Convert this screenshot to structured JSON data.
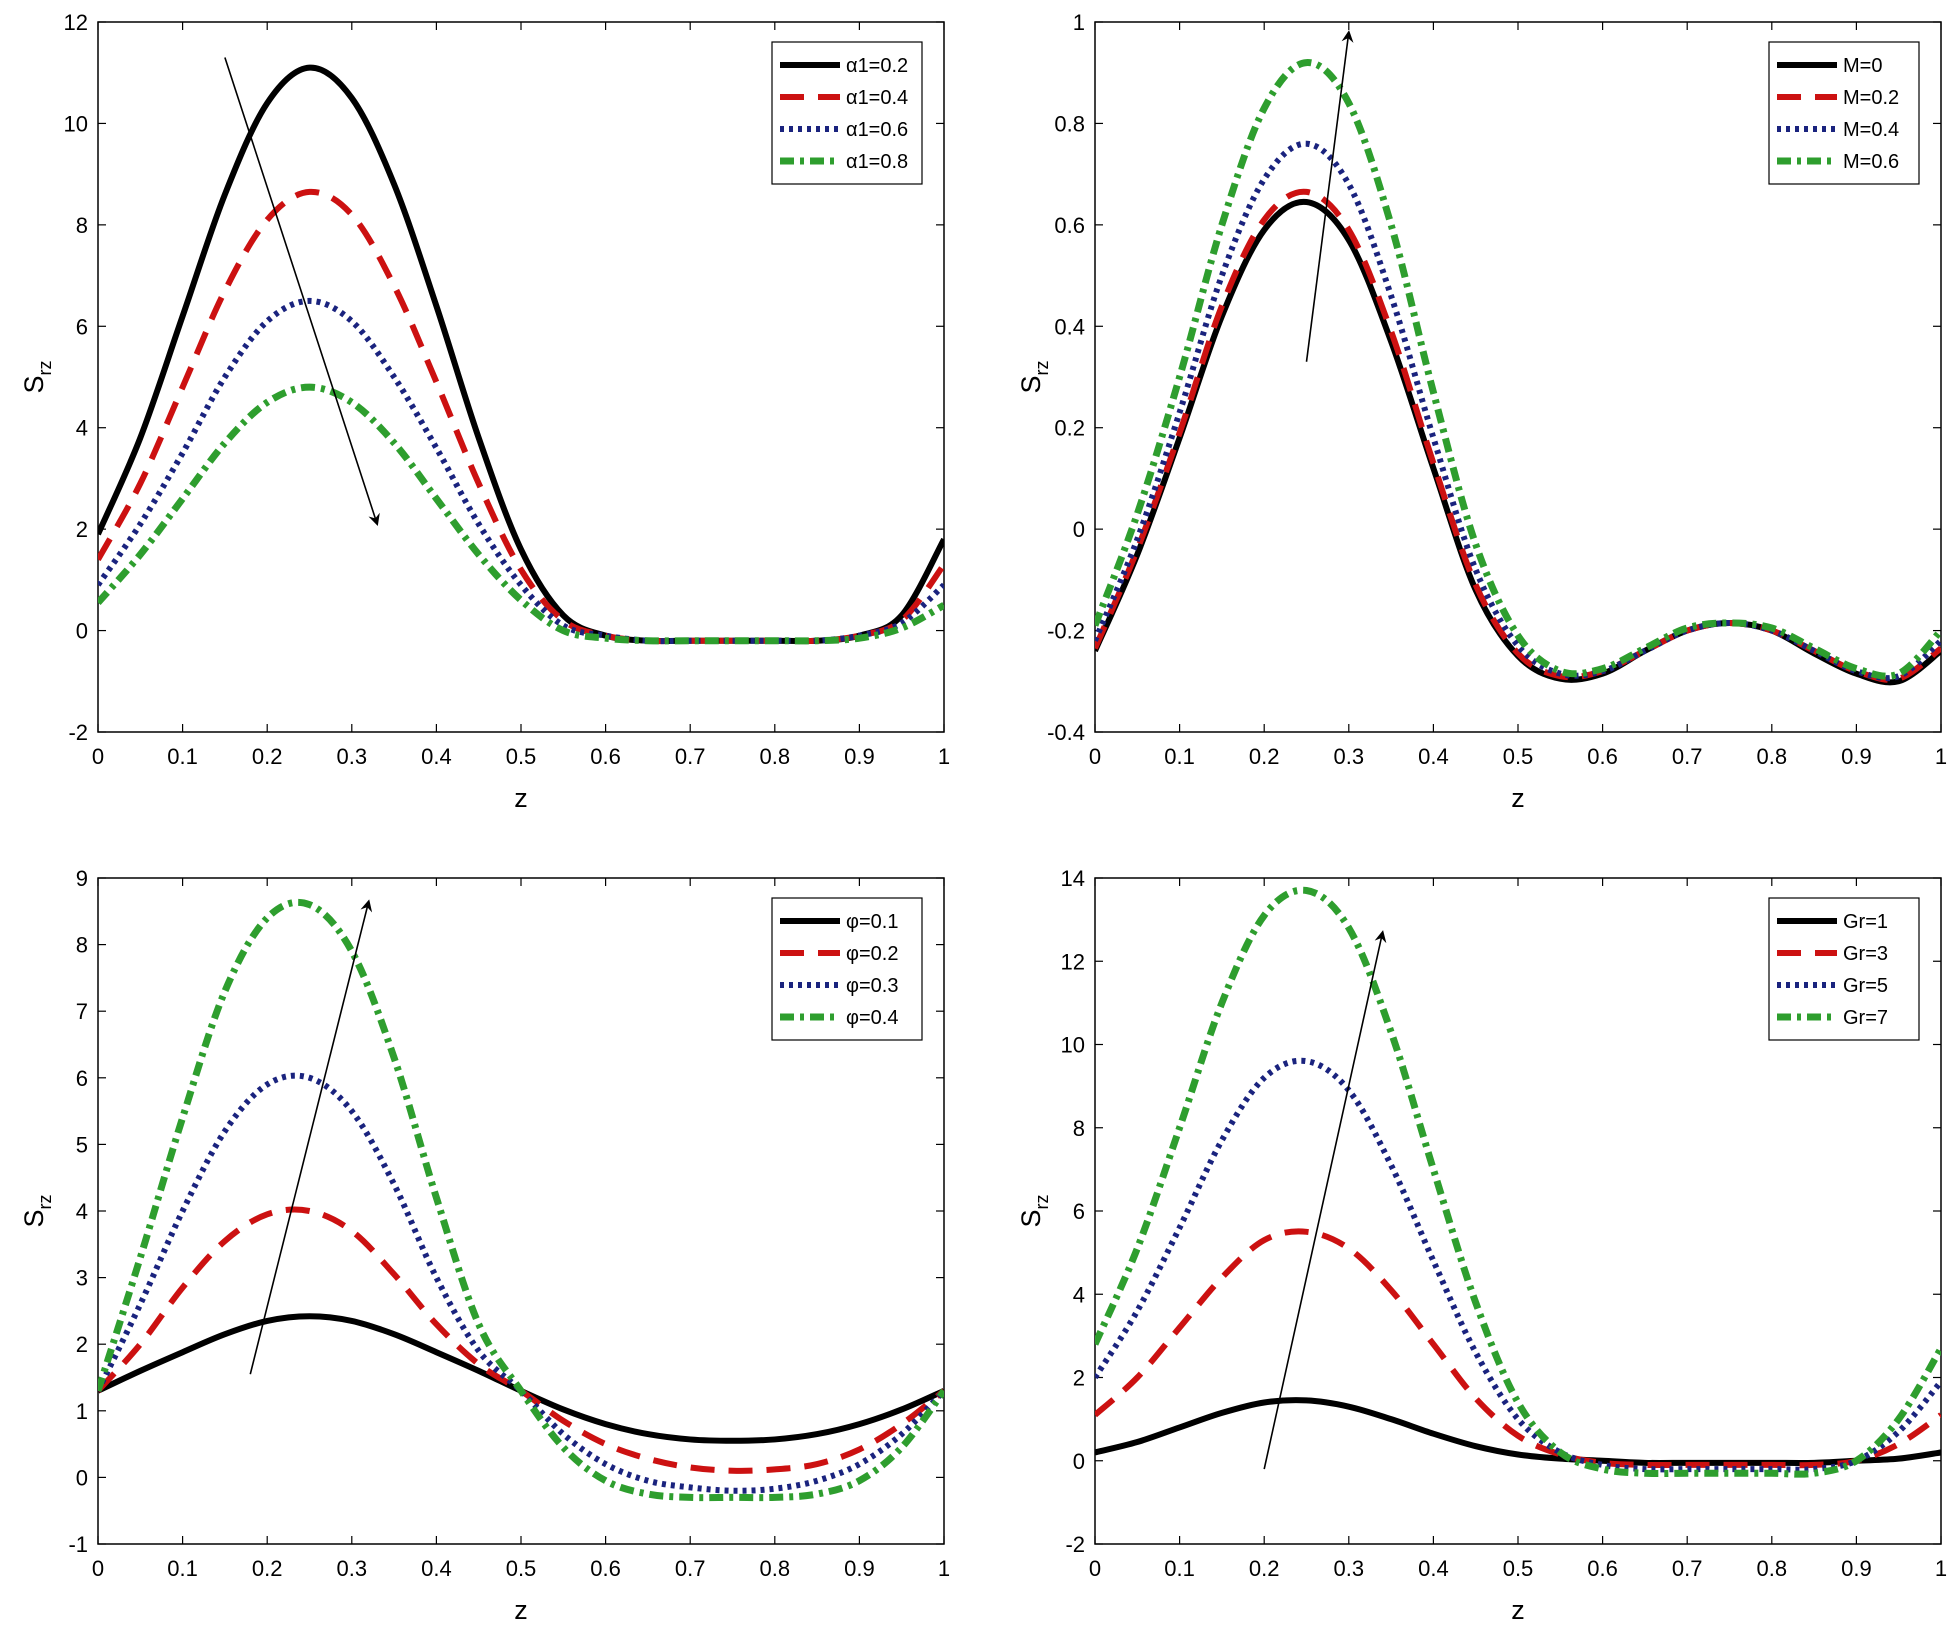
{
  "chart_data": [
    {
      "type": "line",
      "title": "",
      "xlabel": "z",
      "ylabel": "S",
      "ylabel_sub": "rz",
      "xlim": [
        0,
        1
      ],
      "ylim": [
        -2,
        12
      ],
      "xticks": [
        "0",
        "0.1",
        "0.2",
        "0.3",
        "0.4",
        "0.5",
        "0.6",
        "0.7",
        "0.8",
        "0.9",
        "1"
      ],
      "yticks": [
        "-2",
        "0",
        "2",
        "4",
        "6",
        "8",
        "10",
        "12"
      ],
      "legend_position": "top-right",
      "arrow": {
        "from": [
          0.15,
          11.3
        ],
        "to": [
          0.33,
          2.1
        ]
      },
      "x": [
        0,
        0.05,
        0.1,
        0.15,
        0.2,
        0.25,
        0.3,
        0.35,
        0.4,
        0.45,
        0.5,
        0.55,
        0.6,
        0.65,
        0.7,
        0.75,
        0.8,
        0.85,
        0.9,
        0.95,
        1
      ],
      "series": [
        {
          "name": "α1=0.2",
          "color": "#000000",
          "style": "solid",
          "values": [
            1.9,
            3.8,
            6.2,
            8.6,
            10.4,
            11.1,
            10.5,
            8.8,
            6.4,
            3.8,
            1.6,
            0.3,
            -0.1,
            -0.2,
            -0.2,
            -0.2,
            -0.2,
            -0.2,
            -0.1,
            0.3,
            1.8
          ]
        },
        {
          "name": "α1=0.4",
          "color": "#cc1111",
          "style": "dashed",
          "values": [
            1.4,
            2.9,
            4.8,
            6.7,
            8.1,
            8.65,
            8.2,
            6.8,
            4.9,
            2.9,
            1.2,
            0.2,
            -0.1,
            -0.2,
            -0.2,
            -0.2,
            -0.2,
            -0.2,
            -0.1,
            0.2,
            1.3
          ]
        },
        {
          "name": "α1=0.6",
          "color": "#1a237e",
          "style": "dotted",
          "values": [
            0.9,
            2.1,
            3.5,
            5.0,
            6.1,
            6.5,
            6.1,
            5.0,
            3.6,
            2.1,
            0.9,
            0.1,
            -0.1,
            -0.2,
            -0.2,
            -0.2,
            -0.2,
            -0.2,
            -0.1,
            0.15,
            0.9
          ]
        },
        {
          "name": "α1=0.8",
          "color": "#2e9e2e",
          "style": "dashdot",
          "values": [
            0.55,
            1.5,
            2.6,
            3.7,
            4.5,
            4.8,
            4.5,
            3.7,
            2.6,
            1.5,
            0.6,
            0.0,
            -0.15,
            -0.2,
            -0.2,
            -0.2,
            -0.2,
            -0.2,
            -0.15,
            0.05,
            0.5
          ]
        }
      ]
    },
    {
      "type": "line",
      "title": "",
      "xlabel": "z",
      "ylabel": "S",
      "ylabel_sub": "rz",
      "xlim": [
        0,
        1
      ],
      "ylim": [
        -0.4,
        1
      ],
      "xticks": [
        "0",
        "0.1",
        "0.2",
        "0.3",
        "0.4",
        "0.5",
        "0.6",
        "0.7",
        "0.8",
        "0.9",
        "1"
      ],
      "yticks": [
        "-0.4",
        "-0.2",
        "0",
        "0.2",
        "0.4",
        "0.6",
        "0.8",
        "1"
      ],
      "legend_position": "top-right",
      "arrow": {
        "from": [
          0.25,
          0.33
        ],
        "to": [
          0.3,
          0.98
        ]
      },
      "x": [
        0,
        0.05,
        0.1,
        0.15,
        0.2,
        0.25,
        0.3,
        0.35,
        0.4,
        0.45,
        0.5,
        0.55,
        0.6,
        0.65,
        0.7,
        0.75,
        0.8,
        0.85,
        0.9,
        0.95,
        1
      ],
      "series": [
        {
          "name": "M=0",
          "color": "#000000",
          "style": "solid",
          "values": [
            -0.24,
            -0.05,
            0.18,
            0.42,
            0.59,
            0.645,
            0.57,
            0.37,
            0.12,
            -0.12,
            -0.25,
            -0.295,
            -0.285,
            -0.24,
            -0.2,
            -0.185,
            -0.2,
            -0.245,
            -0.285,
            -0.3,
            -0.24
          ]
        },
        {
          "name": "M=0.2",
          "color": "#cc1111",
          "style": "dashed",
          "values": [
            -0.235,
            -0.04,
            0.19,
            0.44,
            0.61,
            0.665,
            0.59,
            0.39,
            0.13,
            -0.11,
            -0.245,
            -0.29,
            -0.28,
            -0.24,
            -0.2,
            -0.185,
            -0.2,
            -0.24,
            -0.28,
            -0.295,
            -0.235
          ]
        },
        {
          "name": "M=0.4",
          "color": "#1a237e",
          "style": "dotted",
          "values": [
            -0.22,
            -0.02,
            0.23,
            0.5,
            0.69,
            0.76,
            0.68,
            0.46,
            0.18,
            -0.08,
            -0.23,
            -0.285,
            -0.28,
            -0.24,
            -0.2,
            -0.185,
            -0.2,
            -0.24,
            -0.28,
            -0.29,
            -0.22
          ]
        },
        {
          "name": "M=0.6",
          "color": "#2e9e2e",
          "style": "dashdot",
          "values": [
            -0.19,
            0.03,
            0.3,
            0.6,
            0.83,
            0.92,
            0.84,
            0.6,
            0.27,
            -0.03,
            -0.21,
            -0.28,
            -0.275,
            -0.235,
            -0.195,
            -0.185,
            -0.195,
            -0.235,
            -0.275,
            -0.285,
            -0.2
          ]
        }
      ]
    },
    {
      "type": "line",
      "title": "",
      "xlabel": "z",
      "ylabel": "S",
      "ylabel_sub": "rz",
      "xlim": [
        0,
        1
      ],
      "ylim": [
        -1,
        9
      ],
      "xticks": [
        "0",
        "0.1",
        "0.2",
        "0.3",
        "0.4",
        "0.5",
        "0.6",
        "0.7",
        "0.8",
        "0.9",
        "1"
      ],
      "yticks": [
        "-1",
        "0",
        "1",
        "2",
        "3",
        "4",
        "5",
        "6",
        "7",
        "8",
        "9"
      ],
      "legend_position": "top-right",
      "arrow": {
        "from": [
          0.18,
          1.55
        ],
        "to": [
          0.32,
          8.65
        ]
      },
      "x": [
        0,
        0.05,
        0.1,
        0.15,
        0.2,
        0.25,
        0.3,
        0.35,
        0.4,
        0.45,
        0.5,
        0.55,
        0.6,
        0.65,
        0.7,
        0.75,
        0.8,
        0.85,
        0.9,
        0.95,
        1
      ],
      "series": [
        {
          "name": "φ=0.1",
          "color": "#000000",
          "style": "solid",
          "values": [
            1.3,
            1.6,
            1.88,
            2.15,
            2.35,
            2.42,
            2.35,
            2.15,
            1.88,
            1.6,
            1.3,
            1.02,
            0.8,
            0.65,
            0.57,
            0.55,
            0.57,
            0.65,
            0.8,
            1.02,
            1.3
          ]
        },
        {
          "name": "φ=0.2",
          "color": "#cc1111",
          "style": "dashed",
          "values": [
            1.3,
            2.0,
            2.85,
            3.55,
            3.95,
            4.0,
            3.7,
            3.05,
            2.3,
            1.7,
            1.3,
            0.85,
            0.5,
            0.28,
            0.15,
            0.1,
            0.12,
            0.2,
            0.42,
            0.8,
            1.3
          ]
        },
        {
          "name": "φ=0.3",
          "color": "#1a237e",
          "style": "dotted",
          "values": [
            1.3,
            2.6,
            4.0,
            5.2,
            5.9,
            6.0,
            5.5,
            4.4,
            3.0,
            1.9,
            1.3,
            0.65,
            0.2,
            -0.05,
            -0.15,
            -0.2,
            -0.17,
            -0.05,
            0.2,
            0.65,
            1.3
          ]
        },
        {
          "name": "φ=0.4",
          "color": "#2e9e2e",
          "style": "dashdot",
          "values": [
            1.3,
            3.3,
            5.4,
            7.3,
            8.4,
            8.6,
            7.9,
            6.3,
            4.2,
            2.3,
            1.3,
            0.45,
            -0.05,
            -0.25,
            -0.3,
            -0.3,
            -0.3,
            -0.25,
            -0.05,
            0.45,
            1.3
          ]
        }
      ]
    },
    {
      "type": "line",
      "title": "",
      "xlabel": "z",
      "ylabel": "S",
      "ylabel_sub": "rz",
      "xlim": [
        0,
        1
      ],
      "ylim": [
        -2,
        14
      ],
      "xticks": [
        "0",
        "0.1",
        "0.2",
        "0.3",
        "0.4",
        "0.5",
        "0.6",
        "0.7",
        "0.8",
        "0.9",
        "1"
      ],
      "yticks": [
        "-2",
        "0",
        "2",
        "4",
        "6",
        "8",
        "10",
        "12",
        "14"
      ],
      "legend_position": "top-right",
      "arrow": {
        "from": [
          0.2,
          -0.2
        ],
        "to": [
          0.34,
          12.7
        ]
      },
      "x": [
        0,
        0.05,
        0.1,
        0.15,
        0.2,
        0.25,
        0.3,
        0.35,
        0.4,
        0.45,
        0.5,
        0.55,
        0.6,
        0.65,
        0.7,
        0.75,
        0.8,
        0.85,
        0.9,
        0.95,
        1
      ],
      "series": [
        {
          "name": "Gr=1",
          "color": "#000000",
          "style": "solid",
          "values": [
            0.2,
            0.45,
            0.8,
            1.15,
            1.4,
            1.45,
            1.3,
            1.0,
            0.65,
            0.35,
            0.15,
            0.05,
            0.0,
            -0.05,
            -0.05,
            -0.05,
            -0.05,
            -0.05,
            0.0,
            0.05,
            0.2
          ]
        },
        {
          "name": "Gr=3",
          "color": "#cc1111",
          "style": "dashed",
          "values": [
            1.1,
            2.0,
            3.2,
            4.4,
            5.3,
            5.5,
            5.1,
            4.1,
            2.8,
            1.5,
            0.6,
            0.15,
            -0.05,
            -0.1,
            -0.1,
            -0.1,
            -0.1,
            -0.1,
            0.0,
            0.4,
            1.1
          ]
        },
        {
          "name": "Gr=5",
          "color": "#1a237e",
          "style": "dotted",
          "values": [
            2.0,
            3.6,
            5.6,
            7.7,
            9.2,
            9.6,
            8.9,
            7.1,
            4.8,
            2.6,
            1.0,
            0.2,
            -0.1,
            -0.2,
            -0.2,
            -0.2,
            -0.2,
            -0.2,
            0.0,
            0.7,
            1.9
          ]
        },
        {
          "name": "Gr=7",
          "color": "#2e9e2e",
          "style": "dashdot",
          "values": [
            2.8,
            5.1,
            8.0,
            11.0,
            13.1,
            13.7,
            12.8,
            10.3,
            7.0,
            3.8,
            1.4,
            0.2,
            -0.2,
            -0.3,
            -0.3,
            -0.3,
            -0.3,
            -0.3,
            0.0,
            1.0,
            2.7
          ]
        }
      ]
    }
  ]
}
